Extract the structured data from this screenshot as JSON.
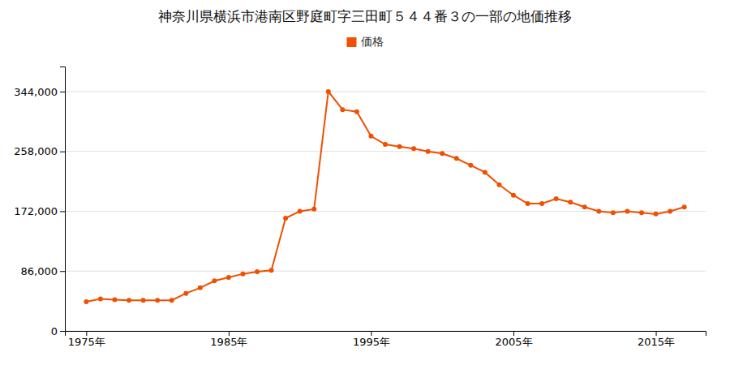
{
  "chart_data": {
    "type": "line",
    "title": "神奈川県横浜市港南区野庭町字三田町５４４番３の一部の地価推移",
    "x": [
      1975,
      1976,
      1977,
      1978,
      1979,
      1980,
      1981,
      1982,
      1983,
      1984,
      1985,
      1986,
      1987,
      1988,
      1989,
      1990,
      1991,
      1992,
      1993,
      1994,
      1995,
      1996,
      1997,
      1998,
      1999,
      2000,
      2001,
      2002,
      2003,
      2004,
      2005,
      2006,
      2007,
      2008,
      2009,
      2010,
      2011,
      2012,
      2013,
      2014,
      2015,
      2016,
      2017
    ],
    "series": [
      {
        "name": "価格",
        "color": "#f05000",
        "marker": "circle",
        "values": [
          42000,
          46000,
          45000,
          44000,
          44000,
          44000,
          44000,
          54000,
          62000,
          72000,
          77000,
          82000,
          85000,
          87000,
          162000,
          172000,
          175000,
          344000,
          318000,
          315000,
          280000,
          268000,
          265000,
          262000,
          258000,
          255000,
          248000,
          238000,
          228000,
          210000,
          195000,
          183000,
          183000,
          190000,
          185000,
          178000,
          172000,
          170000,
          172000,
          170000,
          168000,
          172000,
          178000
        ]
      }
    ],
    "xlim": [
      1973.5,
      2018.5
    ],
    "xticks": [
      {
        "value": 1975,
        "label": "1975年"
      },
      {
        "value": 1985,
        "label": "1985年"
      },
      {
        "value": 1995,
        "label": "1995年"
      },
      {
        "value": 2005,
        "label": "2005年"
      },
      {
        "value": 2015,
        "label": "2015年"
      }
    ],
    "ylim": [
      0,
      380000
    ],
    "yticks": [
      0,
      {
        "value": 86000,
        "label": "86,000"
      },
      {
        "value": 172000,
        "label": "172,000"
      },
      {
        "value": 258000,
        "label": "258,000"
      },
      {
        "value": 344000,
        "label": "344,000"
      }
    ],
    "grid": true,
    "legend": "top"
  }
}
